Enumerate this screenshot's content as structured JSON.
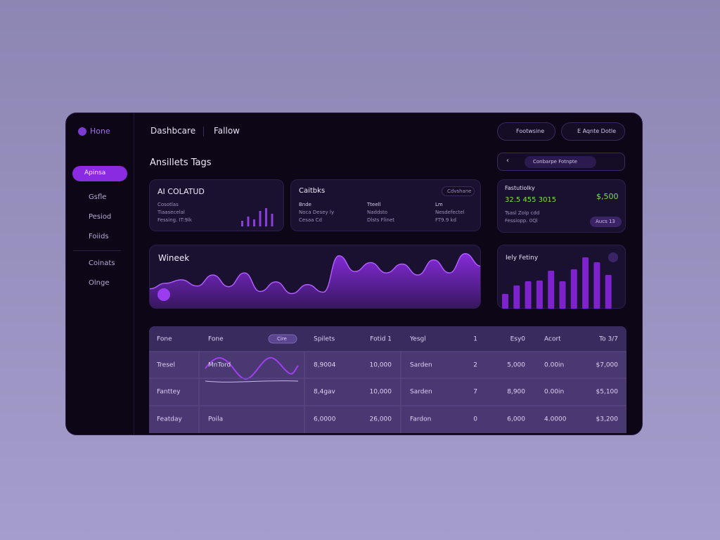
{
  "sidebar": {
    "logo": "Hone",
    "nav": [
      "Apinsa",
      "Gsfle",
      "Pesiod",
      "Foiids",
      "Coinats",
      "Olnge"
    ]
  },
  "header": {
    "tabs": [
      "Dashbcare",
      "Fallow"
    ],
    "buttons": [
      "Footwsine",
      "E Aqnte Dotle"
    ]
  },
  "section_title": "Ansillets Tags",
  "toolbar": {
    "active": "Conbarpe Fotnpte"
  },
  "cards": [
    {
      "title": "AI COLATUD",
      "lines": [
        "Cosotlas",
        "Tiaasecelal",
        "Fessing. IT:9lk"
      ],
      "chart": {
        "type": "bar",
        "values": [
          8,
          14,
          10,
          22,
          26,
          18
        ],
        "ylim": [
          0,
          30
        ],
        "color": "#8b3fd9"
      }
    },
    {
      "title": "Caitbks",
      "badge": "Cdvshane",
      "columns": [
        [
          "Bnde",
          "Noca Desey ly",
          "Cesaa Cd"
        ],
        [
          "Tteell",
          "Naddsto",
          "Dlsts Flinet"
        ],
        [
          "Lm",
          "Nesdefectel",
          "FT9.9 kd"
        ]
      ]
    },
    {
      "title": "Fastutiolky",
      "value": "32.5 455 3015",
      "side_value": "$,500",
      "lines": [
        "Tsasl Zolp cdd",
        "Fessiopp. 0Ql"
      ],
      "badge": "Aucs 13"
    }
  ],
  "charts": [
    {
      "type": "area",
      "title": "Wineek",
      "color": "#8a2be2",
      "ylim": [
        0,
        90
      ],
      "values": [
        29,
        37,
        42,
        33,
        49,
        32,
        52,
        25,
        39,
        22,
        35,
        24,
        77,
        54,
        67,
        52,
        65,
        49,
        71,
        52,
        80,
        62
      ]
    },
    {
      "type": "bar",
      "title": "Iely Fetiny",
      "color": "#7e22ce",
      "ylim": [
        0,
        80
      ],
      "values": [
        21,
        33,
        39,
        40,
        54,
        39,
        56,
        73,
        66,
        48
      ]
    }
  ],
  "table": {
    "filter": "Cire",
    "header": [
      "Fone",
      "Fone",
      "Spilets",
      "Fotid 1",
      "Yesgl",
      "1",
      "Esy0",
      "Acort",
      "To 3/7"
    ],
    "rows": [
      [
        "Tresel",
        "MnTord",
        "8,9004",
        "10,000",
        "Sarden",
        "2",
        "5,000",
        "0.00in",
        "$7,000"
      ],
      [
        "Fanttey",
        null,
        "8,4gav",
        "10,000",
        "Sarden",
        "7",
        "8,900",
        "0.00in",
        "$5,100"
      ],
      [
        "Featday",
        "Poila",
        "6,0000",
        "26,000",
        "Fardon",
        "0",
        "6,000",
        "4.0000",
        "$3,200"
      ]
    ]
  }
}
